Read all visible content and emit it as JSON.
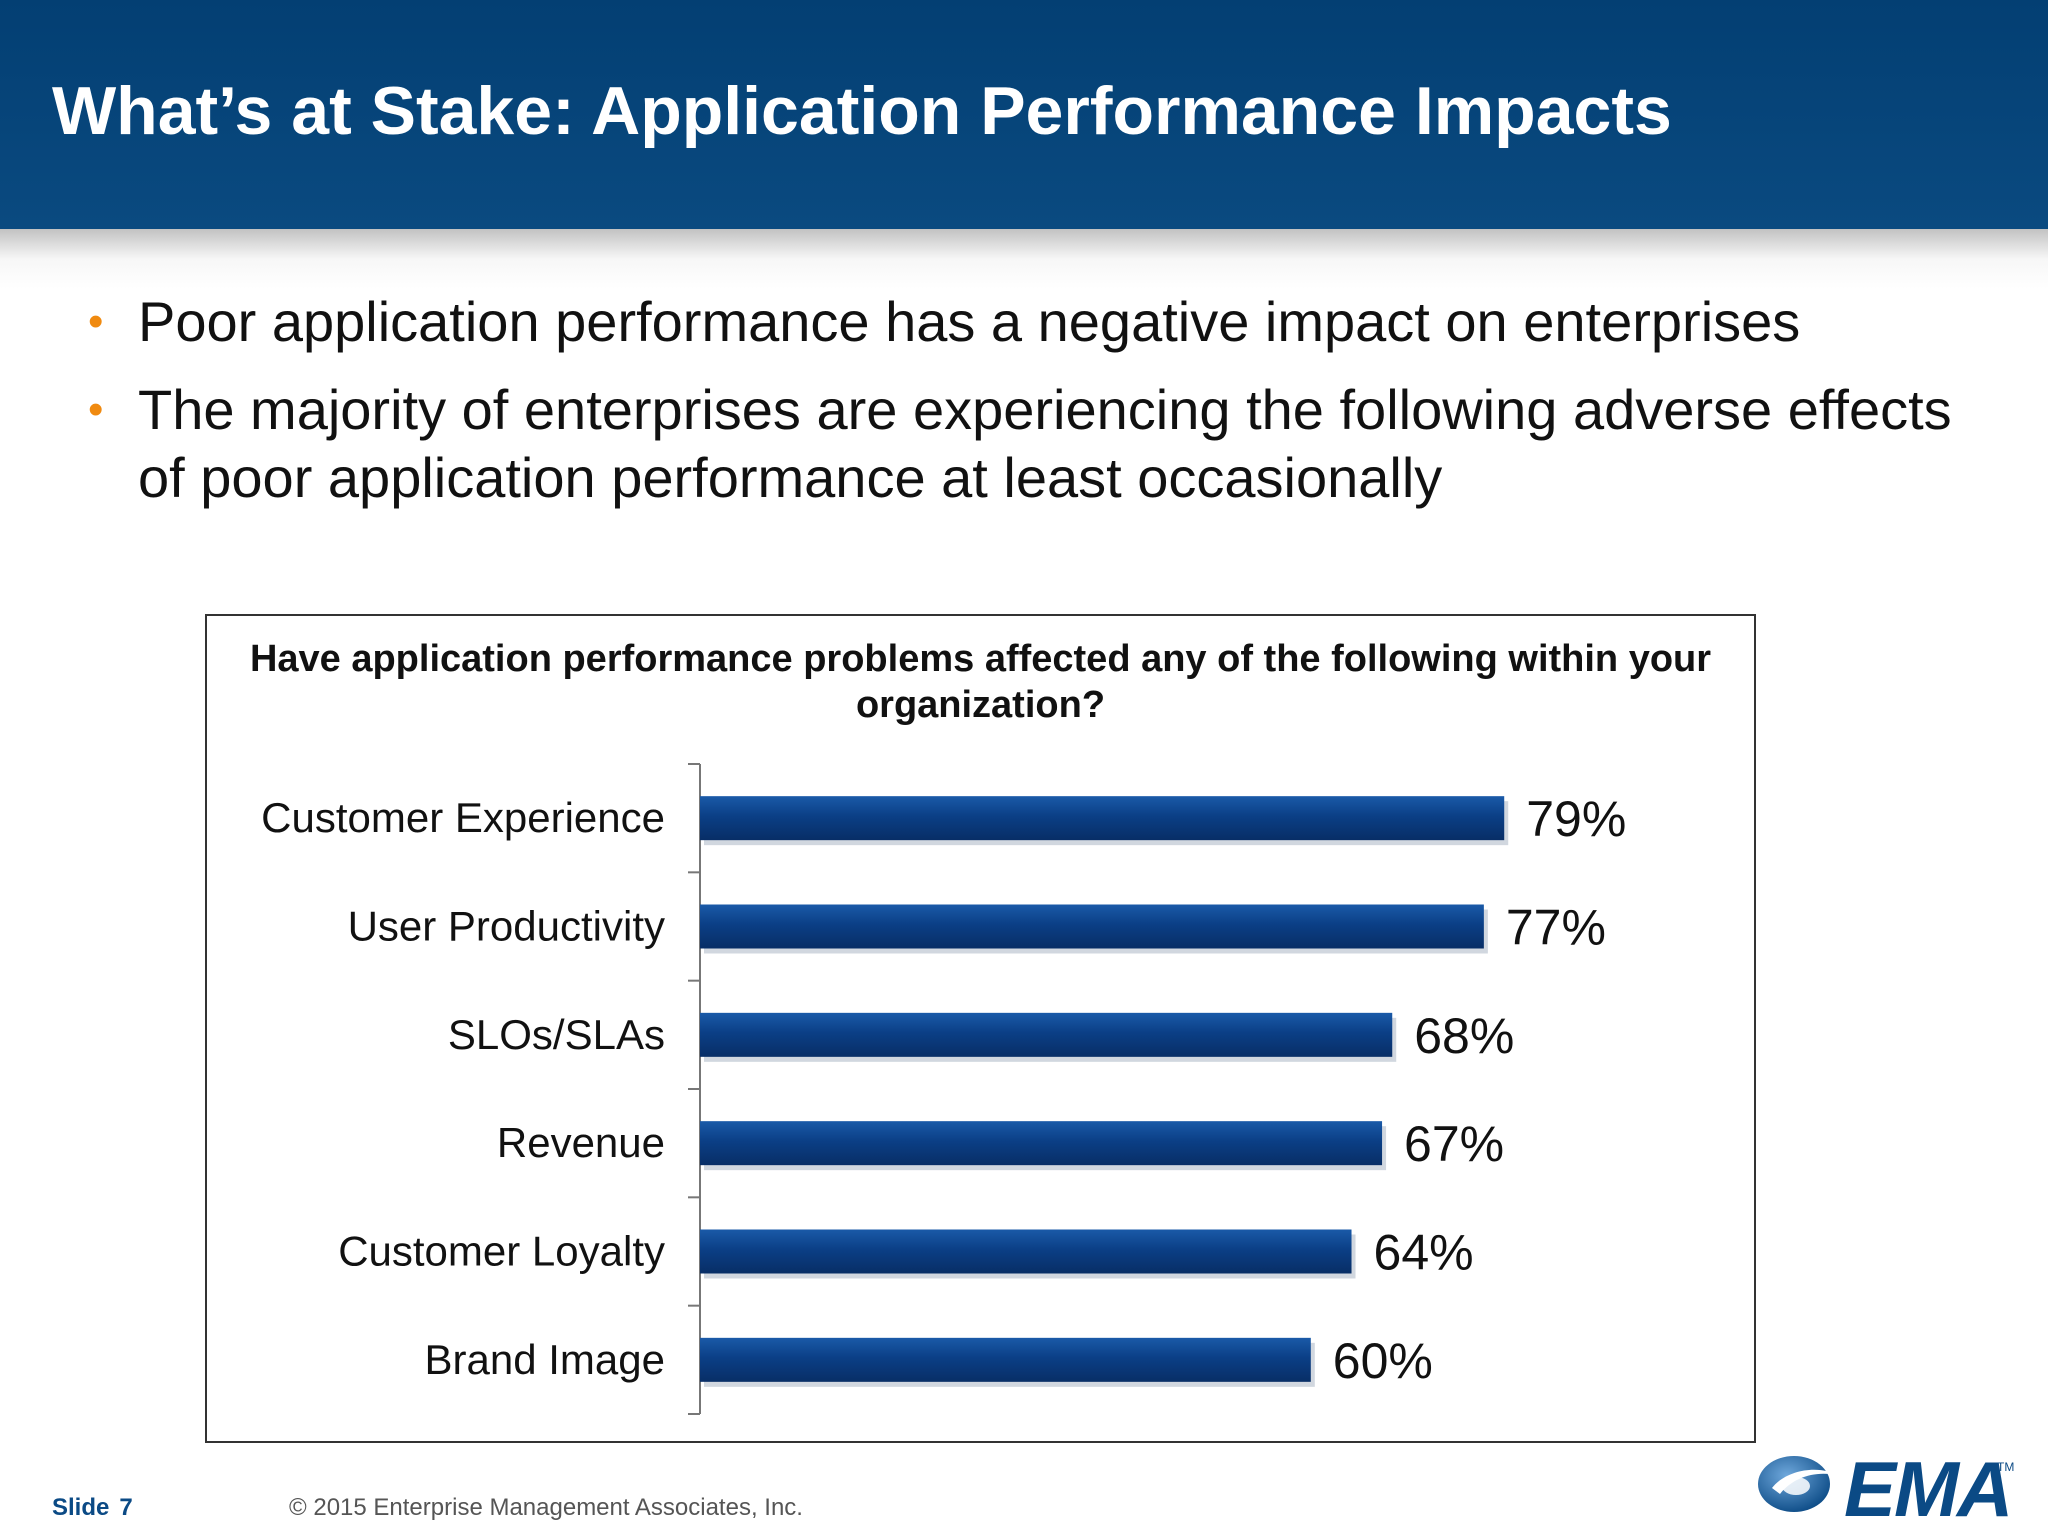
{
  "slide": {
    "title": "What’s at Stake: Application Performance Impacts",
    "bullets": [
      "Poor application performance has a negative impact on enterprises",
      "The majority of enterprises are experiencing the following adverse effects of poor application performance at least occasionally"
    ],
    "bullet_symbol": "•",
    "footer_slide_label": "Slide",
    "footer_slide_number": "7",
    "footer_copyright": "© 2015 Enterprise Management Associates, Inc.",
    "logo_text": "EMA",
    "logo_tm": "TM",
    "colors": {
      "header": "#033f73",
      "bullet": "#f08a10",
      "bar": "#0b3f86"
    }
  },
  "chart_data": {
    "type": "bar",
    "orientation": "horizontal",
    "title": "Have application performance problems affected any of the following within your organization?",
    "categories": [
      "Customer Experience",
      "User Productivity",
      "SLOs/SLAs",
      "Revenue",
      "Customer Loyalty",
      "Brand Image"
    ],
    "values": [
      79,
      77,
      68,
      67,
      64,
      60
    ],
    "value_labels": [
      "79%",
      "77%",
      "68%",
      "67%",
      "64%",
      "60%"
    ],
    "xlim": [
      0,
      100
    ],
    "grid": false,
    "legend": "none"
  }
}
